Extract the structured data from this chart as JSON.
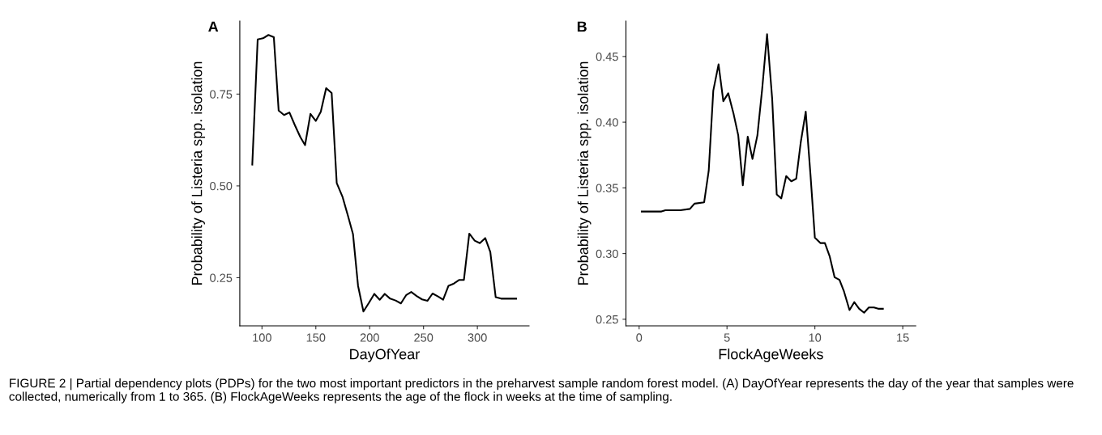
{
  "chart_data": [
    {
      "type": "line",
      "xlabel": "DayOfYear",
      "ylabel": "Probability of Listeria spp. isolation",
      "annotations": [
        "A",
        "FIGURE 2 | Partial dependency plots (PDPs) for the two most important predictors in the preharvest sample random forest model. (A) DayOfYear represents the day of the year that samples were collected, numerically from 1 to 365. (B) FlockAgeWeeks represents the age of the flock in weeks at the time of sampling."
      ],
      "x": [
        91,
        96,
        101,
        106,
        111,
        115.5,
        120.5,
        125.5,
        130.6,
        135.6,
        140,
        145,
        150,
        154.6,
        159.6,
        164.7,
        169.4,
        174.7,
        179.7,
        184.5,
        189.2,
        194.2,
        199.2,
        204.3,
        209.3,
        214,
        219,
        224,
        229,
        234,
        238.6,
        243.6,
        248.6,
        253.6,
        258.4,
        263.4,
        268.2,
        273.2,
        278.2,
        283.2,
        287.5,
        292.5,
        297.5,
        302.3,
        307.3,
        312,
        317,
        322,
        336
      ],
      "series": [
        {
          "color": "#000000",
          "values": [
            0.558,
            0.899,
            0.902,
            0.911,
            0.905,
            0.705,
            0.693,
            0.7,
            0.665,
            0.633,
            0.611,
            0.696,
            0.677,
            0.702,
            0.766,
            0.753,
            0.508,
            0.471,
            0.42,
            0.369,
            0.228,
            0.158,
            0.181,
            0.206,
            0.19,
            0.206,
            0.193,
            0.188,
            0.18,
            0.203,
            0.211,
            0.2,
            0.191,
            0.187,
            0.207,
            0.199,
            0.19,
            0.228,
            0.234,
            0.244,
            0.244,
            0.37,
            0.351,
            0.344,
            0.358,
            0.32,
            0.197,
            0.193,
            0.193
          ]
        }
      ],
      "xlim": [
        79.4,
        348
      ],
      "ylim": [
        0.119,
        0.949
      ],
      "xticks": [
        100,
        150,
        200,
        250,
        300
      ],
      "yticks": [
        {
          "value": 0.25,
          "label": "0.25"
        },
        {
          "value": 0.5,
          "label": "0.50"
        },
        {
          "value": 0.75,
          "label": "0.75"
        }
      ],
      "grid": false,
      "legend": false
    },
    {
      "type": "line",
      "xlabel": "FlockAgeWeeks",
      "ylabel": "Probability of Listeria spp. isolation",
      "annotations": [
        "B"
      ],
      "x": [
        0.15,
        1.27,
        1.5,
        2.35,
        2.89,
        3.15,
        3.7,
        3.96,
        4.22,
        4.52,
        4.79,
        5.07,
        5.38,
        5.64,
        5.9,
        6.18,
        6.45,
        6.73,
        7.0,
        7.28,
        7.57,
        7.83,
        8.09,
        8.37,
        8.66,
        8.94,
        9.2,
        9.48,
        9.75,
        10.0,
        10.31,
        10.57,
        10.84,
        11.12,
        11.4,
        11.66,
        11.97,
        12.24,
        12.52,
        12.8,
        13.07,
        13.36,
        13.6,
        13.87
      ],
      "series": [
        {
          "color": "#000000",
          "values": [
            0.332,
            0.332,
            0.333,
            0.333,
            0.334,
            0.338,
            0.339,
            0.363,
            0.424,
            0.444,
            0.416,
            0.422,
            0.406,
            0.39,
            0.352,
            0.389,
            0.372,
            0.39,
            0.425,
            0.467,
            0.418,
            0.345,
            0.342,
            0.359,
            0.355,
            0.357,
            0.385,
            0.408,
            0.36,
            0.312,
            0.308,
            0.308,
            0.298,
            0.282,
            0.28,
            0.271,
            0.257,
            0.263,
            0.258,
            0.255,
            0.259,
            0.259,
            0.258,
            0.258
          ]
        }
      ],
      "xlim": [
        -0.75,
        15.74
      ],
      "ylim": [
        0.245,
        0.477
      ],
      "xticks": [
        0,
        5,
        10,
        15
      ],
      "yticks": [
        {
          "value": 0.25,
          "label": "0.25"
        },
        {
          "value": 0.3,
          "label": "0.30"
        },
        {
          "value": 0.35,
          "label": "0.35"
        },
        {
          "value": 0.4,
          "label": "0.40"
        },
        {
          "value": 0.45,
          "label": "0.45"
        }
      ],
      "grid": false,
      "legend": false
    }
  ]
}
